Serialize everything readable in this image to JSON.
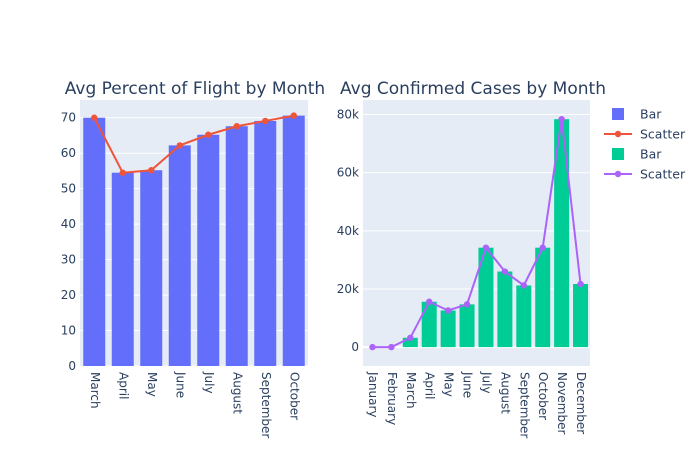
{
  "chart_data": [
    {
      "type": "bar",
      "title": "Avg Percent of Flight by Month",
      "categories": [
        "March",
        "April",
        "May",
        "June",
        "July",
        "August",
        "September",
        "October"
      ],
      "ylim": [
        0,
        75
      ],
      "yticks": [
        0,
        10,
        20,
        30,
        40,
        50,
        60,
        70
      ],
      "series": [
        {
          "name": "Bar",
          "type": "bar",
          "color": "#636efa",
          "values": [
            70,
            54.5,
            55.2,
            62.2,
            65.2,
            67.6,
            69.1,
            70.6
          ]
        },
        {
          "name": "Scatter",
          "type": "line",
          "color": "#ef553b",
          "values": [
            70,
            54.5,
            55.2,
            62.2,
            65.2,
            67.6,
            69.1,
            70.6
          ]
        }
      ],
      "grid": true
    },
    {
      "type": "bar",
      "title": "Avg Confirmed Cases by Month",
      "categories": [
        "January",
        "February",
        "March",
        "April",
        "May",
        "June",
        "July",
        "August",
        "September",
        "October",
        "November",
        "December"
      ],
      "ylim": [
        -6500,
        85000
      ],
      "yticks": [
        0,
        20000,
        40000,
        60000,
        80000
      ],
      "ytick_labels": [
        "0",
        "20k",
        "40k",
        "60k",
        "80k"
      ],
      "series": [
        {
          "name": "Bar",
          "type": "bar",
          "color": "#00cc96",
          "values": [
            0,
            0,
            3200,
            15600,
            12600,
            14700,
            34200,
            26000,
            21200,
            34200,
            78400,
            21700
          ]
        },
        {
          "name": "Scatter",
          "type": "line",
          "color": "#ab63fa",
          "values": [
            0,
            0,
            3200,
            15600,
            12600,
            14700,
            34200,
            26000,
            21200,
            34200,
            78400,
            21700
          ]
        }
      ],
      "grid": true
    }
  ],
  "legend": {
    "items": [
      {
        "label": "Bar",
        "kind": "bar",
        "color": "#636efa"
      },
      {
        "label": "Scatter",
        "kind": "line",
        "color": "#ef553b"
      },
      {
        "label": "Bar",
        "kind": "bar",
        "color": "#00cc96"
      },
      {
        "label": "Scatter",
        "kind": "line",
        "color": "#ab63fa"
      }
    ]
  },
  "colors": {
    "plot_bg": "#e5ecf6",
    "grid": "#ffffff",
    "text": "#2a3f5f"
  }
}
